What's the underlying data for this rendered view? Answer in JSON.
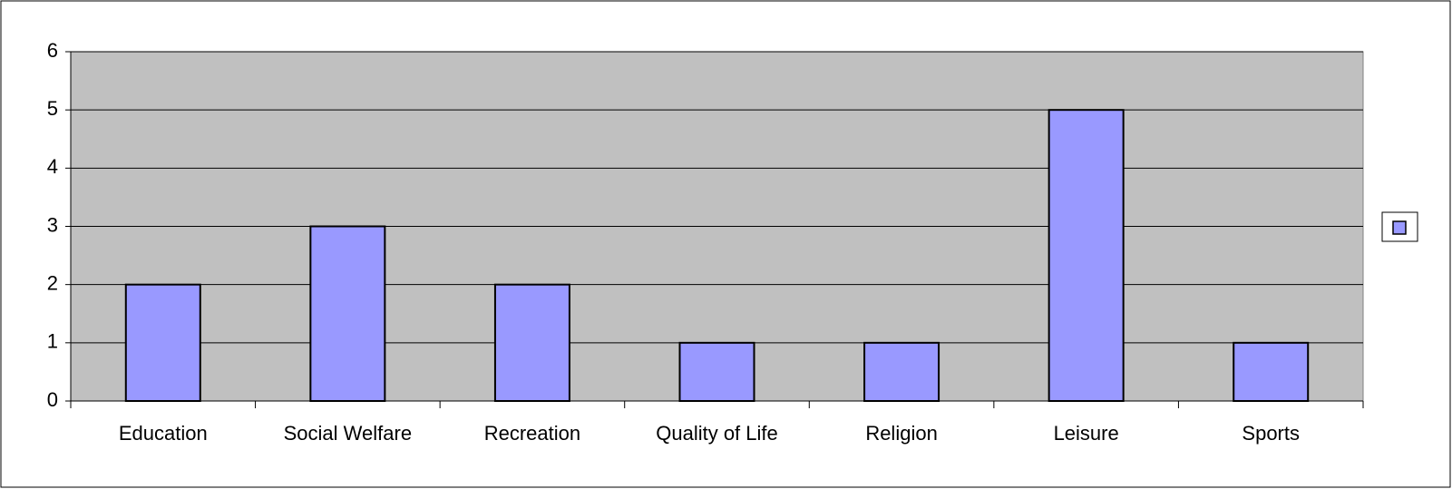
{
  "chart_data": {
    "type": "bar",
    "categories": [
      "Education",
      "Social Welfare",
      "Recreation",
      "Quality of Life",
      "Religion",
      "Leisure",
      "Sports"
    ],
    "values": [
      2,
      3,
      2,
      1,
      1,
      5,
      1
    ],
    "color": "#9999ff",
    "ylim": [
      0,
      6
    ],
    "yticks": [
      0,
      1,
      2,
      3,
      4,
      5,
      6
    ],
    "grid": true
  }
}
